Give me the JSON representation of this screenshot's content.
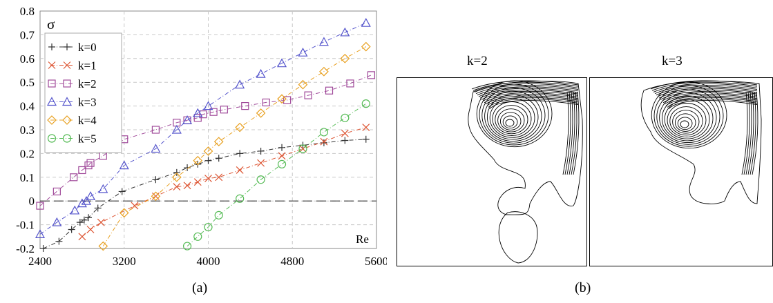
{
  "caption_a": "(a)",
  "caption_b": "(b)",
  "chart_data": [
    {
      "type": "line",
      "xlabel": "Re",
      "ylabel": "σ",
      "xlim": [
        2400,
        5600
      ],
      "ylim": [
        -0.2,
        0.8
      ],
      "xticks": [
        "2400",
        "3200",
        "4000",
        "4800",
        "5600"
      ],
      "yticks": [
        "-0.2",
        "-0.1",
        "0",
        "0.1",
        "0.2",
        "0.3",
        "0.4",
        "0.5",
        "0.6",
        "0.7",
        "0.8"
      ],
      "grid": true,
      "legend_position": "top-left",
      "reference_line_y": 0,
      "series": [
        {
          "name": "k=0",
          "color": "#333333",
          "marker": "plus",
          "x": [
            2430,
            2580,
            2700,
            2780,
            2820,
            2860,
            2950,
            3180,
            3500,
            3700,
            3800,
            3900,
            4000,
            4100,
            4300,
            4500,
            4700,
            4900,
            5100,
            5300,
            5500
          ],
          "y": [
            -0.2,
            -0.17,
            -0.12,
            -0.09,
            -0.08,
            -0.07,
            -0.03,
            0.04,
            0.09,
            0.12,
            0.14,
            0.155,
            0.17,
            0.18,
            0.2,
            0.21,
            0.225,
            0.235,
            0.245,
            0.255,
            0.26
          ]
        },
        {
          "name": "k=1",
          "color": "#dd5533",
          "marker": "cross",
          "x": [
            2800,
            2880,
            2980,
            3300,
            3500,
            3700,
            3800,
            3900,
            4000,
            4100,
            4300,
            4500,
            4700,
            4900,
            5100,
            5300,
            5500
          ],
          "y": [
            -0.15,
            -0.12,
            -0.09,
            -0.02,
            0.02,
            0.06,
            0.065,
            0.08,
            0.095,
            0.1,
            0.13,
            0.16,
            0.19,
            0.22,
            0.25,
            0.285,
            0.31
          ]
        },
        {
          "name": "k=2",
          "color": "#a04a9a",
          "marker": "square",
          "x": [
            2400,
            2560,
            2720,
            2800,
            2860,
            2880,
            3000,
            3200,
            3500,
            3700,
            3800,
            3900,
            3950,
            4050,
            4150,
            4350,
            4550,
            4750,
            4950,
            5150,
            5350,
            5550
          ],
          "y": [
            -0.02,
            0.04,
            0.1,
            0.13,
            0.15,
            0.16,
            0.19,
            0.26,
            0.3,
            0.33,
            0.34,
            0.35,
            0.365,
            0.375,
            0.385,
            0.4,
            0.415,
            0.425,
            0.445,
            0.465,
            0.495,
            0.53
          ]
        },
        {
          "name": "k=3",
          "color": "#5555cc",
          "marker": "triangle",
          "x": [
            2400,
            2560,
            2730,
            2800,
            2840,
            2880,
            3000,
            3200,
            3500,
            3700,
            3800,
            3900,
            4000,
            4300,
            4500,
            4700,
            4900,
            5100,
            5300,
            5500
          ],
          "y": [
            -0.14,
            -0.09,
            -0.04,
            -0.01,
            0.0,
            0.02,
            0.05,
            0.15,
            0.22,
            0.3,
            0.34,
            0.37,
            0.4,
            0.49,
            0.535,
            0.58,
            0.625,
            0.67,
            0.71,
            0.75
          ]
        },
        {
          "name": "k=4",
          "color": "#e8a020",
          "marker": "diamond",
          "x": [
            3000,
            3200,
            3500,
            3700,
            3900,
            4000,
            4100,
            4300,
            4500,
            4700,
            4900,
            5100,
            5300,
            5500
          ],
          "y": [
            -0.19,
            -0.05,
            0.02,
            0.1,
            0.17,
            0.21,
            0.25,
            0.31,
            0.37,
            0.43,
            0.49,
            0.545,
            0.6,
            0.65
          ]
        },
        {
          "name": "k=5",
          "color": "#55bb55",
          "marker": "circle",
          "x": [
            3800,
            3900,
            4000,
            4100,
            4300,
            4500,
            4700,
            4900,
            5100,
            5300,
            5500
          ],
          "y": [
            -0.19,
            -0.15,
            -0.11,
            -0.06,
            0.01,
            0.09,
            0.155,
            0.22,
            0.29,
            0.35,
            0.41
          ]
        }
      ]
    },
    {
      "type": "contour",
      "panels": [
        {
          "title": "k=2"
        },
        {
          "title": "k=3"
        }
      ]
    }
  ]
}
